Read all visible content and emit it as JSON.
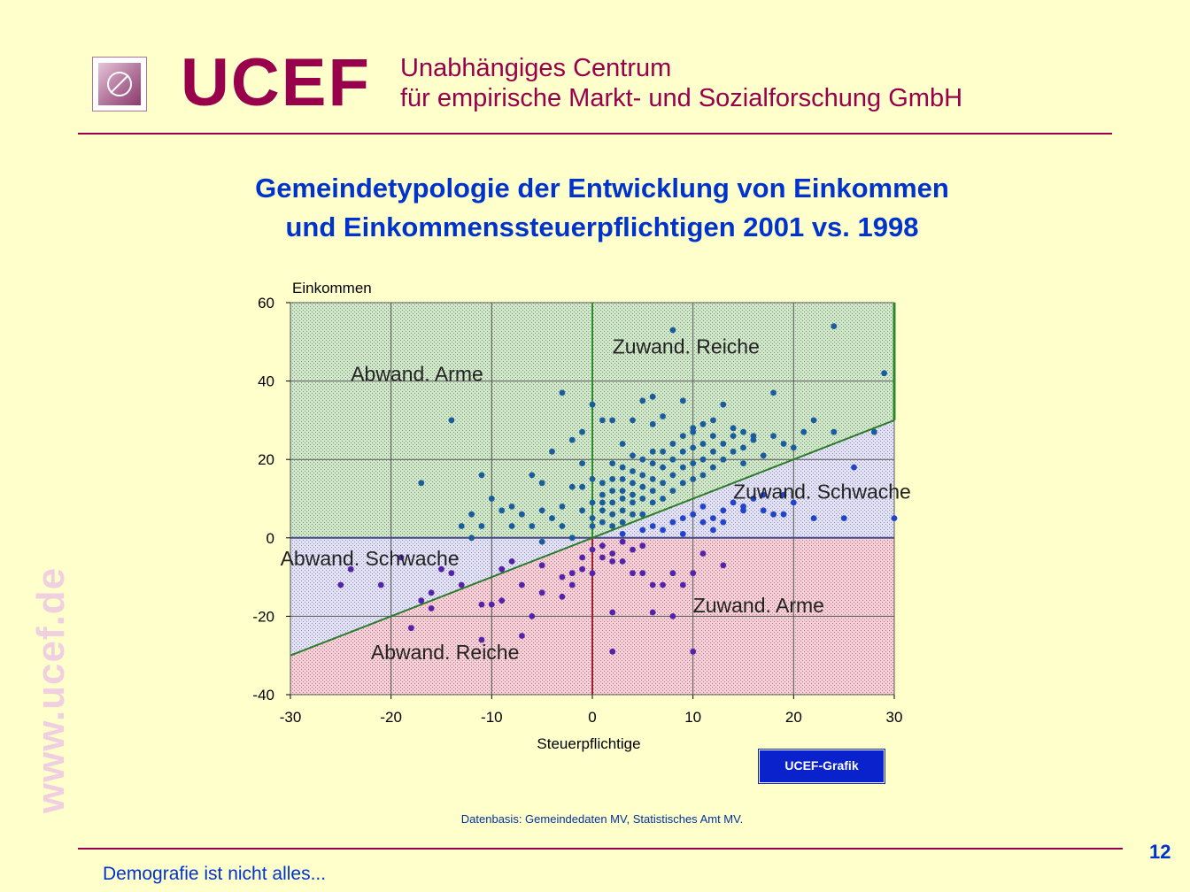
{
  "header": {
    "brand": "UCEF",
    "subtitle_line1": "Unabhängiges Centrum",
    "subtitle_line2": "für empirische Markt- und Sozialforschung GmbH"
  },
  "slide": {
    "title_line1": "Gemeindetypologie der Entwicklung von Einkommen",
    "title_line2": "und Einkommenssteuerpflichtigen 2001 vs. 1998",
    "watermark": "www.ucef.de",
    "source": "Datenbasis: Gemeindedaten MV, Statistisches Amt MV.",
    "footer": "Demografie ist nicht alles...",
    "page_number": "12",
    "badge": "UCEF-Grafik"
  },
  "colors": {
    "brand": "#99004c",
    "title": "#0033cc",
    "background": "#ffffcc",
    "green_zone": "#c8e0c8",
    "blue_zone": "#dcdcf0",
    "red_zone": "#f0c8d0",
    "points_teal": "#1a5c9c",
    "points_blue": "#2244cc",
    "points_purple": "#5522aa"
  },
  "chart_data": {
    "type": "scatter",
    "xlabel": "Steuerpflichtige",
    "ylabel": "Einkommen",
    "xlim": [
      -30,
      30
    ],
    "ylim": [
      -40,
      60
    ],
    "xticks": [
      "-30",
      "-20",
      "-10",
      "0",
      "10",
      "20",
      "30"
    ],
    "yticks": [
      "60",
      "40",
      "20",
      "0",
      "-20",
      "-40"
    ],
    "grid": true,
    "reference_line": "y = x",
    "zones": [
      {
        "label": "Zuwand. Reiche",
        "x": 2,
        "y": 47
      },
      {
        "label": "Abwand. Arme",
        "x": -24,
        "y": 40
      },
      {
        "label": "Zuwand. Schwache",
        "x": 14,
        "y": 10
      },
      {
        "label": "Abwand. Schwache",
        "x": -31,
        "y": -7
      },
      {
        "label": "Zuwand. Arme",
        "x": 10,
        "y": -19
      },
      {
        "label": "Abwand. Reiche",
        "x": -22,
        "y": -31
      }
    ],
    "series": [
      {
        "group": "income above tax-payer change",
        "points": [
          [
            -14,
            30
          ],
          [
            -17,
            14
          ],
          [
            -12,
            0
          ],
          [
            -13,
            3
          ],
          [
            -11,
            3
          ],
          [
            -12,
            6
          ],
          [
            -11,
            16
          ],
          [
            -8,
            3
          ],
          [
            -9,
            7
          ],
          [
            -10,
            10
          ],
          [
            -7,
            6
          ],
          [
            -6,
            3
          ],
          [
            -6,
            16
          ],
          [
            -5,
            7
          ],
          [
            -5,
            14
          ],
          [
            -4,
            5
          ],
          [
            -3,
            8
          ],
          [
            -3,
            3
          ],
          [
            -2,
            13
          ],
          [
            -2,
            25
          ],
          [
            -3,
            37
          ],
          [
            -1,
            13
          ],
          [
            -1,
            7
          ],
          [
            0,
            3
          ],
          [
            0,
            5
          ],
          [
            0,
            9
          ],
          [
            0,
            15
          ],
          [
            -1,
            19
          ],
          [
            1,
            4
          ],
          [
            1,
            7
          ],
          [
            1,
            9
          ],
          [
            1,
            11
          ],
          [
            1,
            14
          ],
          [
            2,
            3
          ],
          [
            2,
            6
          ],
          [
            2,
            9
          ],
          [
            2,
            12
          ],
          [
            2,
            15
          ],
          [
            2,
            19
          ],
          [
            3,
            4
          ],
          [
            3,
            7
          ],
          [
            3,
            10
          ],
          [
            3,
            12
          ],
          [
            3,
            15
          ],
          [
            3,
            18
          ],
          [
            4,
            6
          ],
          [
            4,
            9
          ],
          [
            4,
            11
          ],
          [
            4,
            14
          ],
          [
            4,
            17
          ],
          [
            5,
            6
          ],
          [
            5,
            10
          ],
          [
            5,
            13
          ],
          [
            5,
            16
          ],
          [
            5,
            20
          ],
          [
            6,
            9
          ],
          [
            6,
            12
          ],
          [
            6,
            15
          ],
          [
            6,
            19
          ],
          [
            7,
            10
          ],
          [
            7,
            14
          ],
          [
            7,
            18
          ],
          [
            7,
            22
          ],
          [
            8,
            12
          ],
          [
            8,
            16
          ],
          [
            8,
            20
          ],
          [
            8,
            24
          ],
          [
            9,
            14
          ],
          [
            9,
            18
          ],
          [
            9,
            22
          ],
          [
            10,
            15
          ],
          [
            10,
            19
          ],
          [
            10,
            23
          ],
          [
            10,
            27
          ],
          [
            11,
            16
          ],
          [
            11,
            20
          ],
          [
            11,
            24
          ],
          [
            12,
            18
          ],
          [
            12,
            22
          ],
          [
            12,
            26
          ],
          [
            13,
            20
          ],
          [
            13,
            24
          ],
          [
            14,
            22
          ],
          [
            14,
            26
          ],
          [
            15,
            23
          ],
          [
            15,
            19
          ],
          [
            16,
            25
          ],
          [
            17,
            21
          ],
          [
            18,
            26
          ],
          [
            19,
            24
          ],
          [
            20,
            23
          ],
          [
            22,
            30
          ],
          [
            24,
            27
          ],
          [
            24,
            54
          ],
          [
            28,
            27
          ],
          [
            29,
            42
          ],
          [
            0,
            34
          ],
          [
            1,
            30
          ],
          [
            2,
            30
          ],
          [
            4,
            30
          ],
          [
            5,
            35
          ],
          [
            6,
            36
          ],
          [
            7,
            31
          ],
          [
            8,
            53
          ],
          [
            9,
            35
          ],
          [
            13,
            34
          ],
          [
            18,
            37
          ],
          [
            21,
            27
          ],
          [
            6,
            29
          ],
          [
            10,
            28
          ],
          [
            15,
            27
          ],
          [
            -1,
            27
          ],
          [
            3,
            24
          ],
          [
            12,
            30
          ],
          [
            14,
            28
          ],
          [
            16,
            26
          ],
          [
            6,
            22
          ],
          [
            9,
            26
          ],
          [
            11,
            29
          ],
          [
            -4,
            22
          ],
          [
            -8,
            8
          ],
          [
            -5,
            -1
          ],
          [
            -2,
            0
          ],
          [
            4,
            21
          ]
        ]
      },
      {
        "group": "income below tax-payer change, income growth",
        "points": [
          [
            3,
            1
          ],
          [
            5,
            2
          ],
          [
            6,
            3
          ],
          [
            7,
            2
          ],
          [
            8,
            4
          ],
          [
            9,
            5
          ],
          [
            10,
            6
          ],
          [
            11,
            4
          ],
          [
            12,
            5
          ],
          [
            13,
            7
          ],
          [
            14,
            9
          ],
          [
            15,
            8
          ],
          [
            16,
            10
          ],
          [
            17,
            11
          ],
          [
            18,
            6
          ],
          [
            19,
            6
          ],
          [
            20,
            9
          ],
          [
            22,
            5
          ],
          [
            25,
            5
          ],
          [
            30,
            5
          ],
          [
            19,
            11
          ],
          [
            26,
            18
          ],
          [
            15,
            7
          ],
          [
            17,
            7
          ],
          [
            13,
            4
          ],
          [
            11,
            8
          ],
          [
            12,
            2
          ],
          [
            9,
            1
          ]
        ]
      },
      {
        "group": "income decline",
        "points": [
          [
            -25,
            -12
          ],
          [
            -24,
            -8
          ],
          [
            -19,
            -5
          ],
          [
            -17,
            -16
          ],
          [
            -16,
            -14
          ],
          [
            -15,
            -8
          ],
          [
            -16,
            -18
          ],
          [
            -13,
            -12
          ],
          [
            -11,
            -26
          ],
          [
            -11,
            -17
          ],
          [
            -10,
            -17
          ],
          [
            -9,
            -16
          ],
          [
            -9,
            -8
          ],
          [
            -8,
            -6
          ],
          [
            -7,
            -12
          ],
          [
            -7,
            -25
          ],
          [
            -6,
            -20
          ],
          [
            -5,
            -7
          ],
          [
            -5,
            -14
          ],
          [
            -3,
            -10
          ],
          [
            -3,
            -15
          ],
          [
            -2,
            -9
          ],
          [
            -2,
            -12
          ],
          [
            -1,
            -5
          ],
          [
            -1,
            -8
          ],
          [
            0,
            -3
          ],
          [
            0,
            -9
          ],
          [
            1,
            -2
          ],
          [
            1,
            -5
          ],
          [
            2,
            -4
          ],
          [
            2,
            -6
          ],
          [
            3,
            -1
          ],
          [
            3,
            -6
          ],
          [
            4,
            -3
          ],
          [
            4,
            -9
          ],
          [
            5,
            -2
          ],
          [
            5,
            -9
          ],
          [
            6,
            -12
          ],
          [
            7,
            -12
          ],
          [
            8,
            -9
          ],
          [
            9,
            -12
          ],
          [
            10,
            -9
          ],
          [
            11,
            -4
          ],
          [
            13,
            -7
          ],
          [
            2,
            -19
          ],
          [
            2,
            -29
          ],
          [
            6,
            -19
          ],
          [
            8,
            -20
          ],
          [
            10,
            -29
          ],
          [
            -18,
            -23
          ],
          [
            -21,
            -12
          ],
          [
            -14,
            -9
          ]
        ]
      }
    ]
  }
}
